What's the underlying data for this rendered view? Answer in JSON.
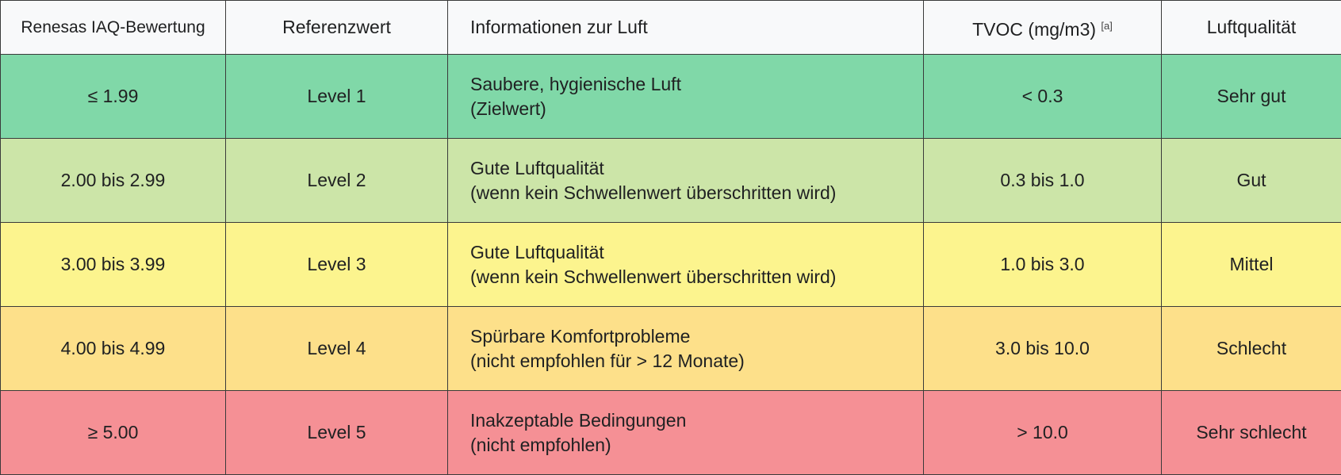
{
  "headers": {
    "score": "Renesas IAQ-Bewertung",
    "reference": "Referenzwert",
    "info": "Informationen zur Luft",
    "tvoc": "TVOC (mg/m3)",
    "tvoc_note": "[a]",
    "quality": "Luftqualität"
  },
  "rows": [
    {
      "score": "≤ 1.99",
      "reference": "Level 1",
      "info_line1": "Saubere, hygienische Luft",
      "info_line2": "(Zielwert)",
      "tvoc": "< 0.3",
      "quality": "Sehr gut",
      "color": "#80d8a8"
    },
    {
      "score": "2.00 bis 2.99",
      "reference": "Level 2",
      "info_line1": "Gute Luftqualität",
      "info_line2": "(wenn kein Schwellenwert überschritten wird)",
      "tvoc": "0.3 bis 1.0",
      "quality": "Gut",
      "color": "#cce5a8"
    },
    {
      "score": "3.00 bis 3.99",
      "reference": "Level 3",
      "info_line1": "Gute Luftqualität",
      "info_line2": "(wenn kein Schwellenwert überschritten wird)",
      "tvoc": "1.0 bis 3.0",
      "quality": "Mittel",
      "color": "#fcf48e"
    },
    {
      "score": "4.00 bis 4.99",
      "reference": "Level 4",
      "info_line1": "Spürbare Komfortprobleme",
      "info_line2": "(nicht empfohlen für > 12 Monate)",
      "tvoc": "3.0 bis 10.0",
      "quality": "Schlecht",
      "color": "#fde08a"
    },
    {
      "score": "≥ 5.00",
      "reference": "Level 5",
      "info_line1": "Inakzeptable Bedingungen",
      "info_line2": "(nicht empfohlen)",
      "tvoc": "> 10.0",
      "quality": "Sehr schlecht",
      "color": "#f59095"
    }
  ]
}
